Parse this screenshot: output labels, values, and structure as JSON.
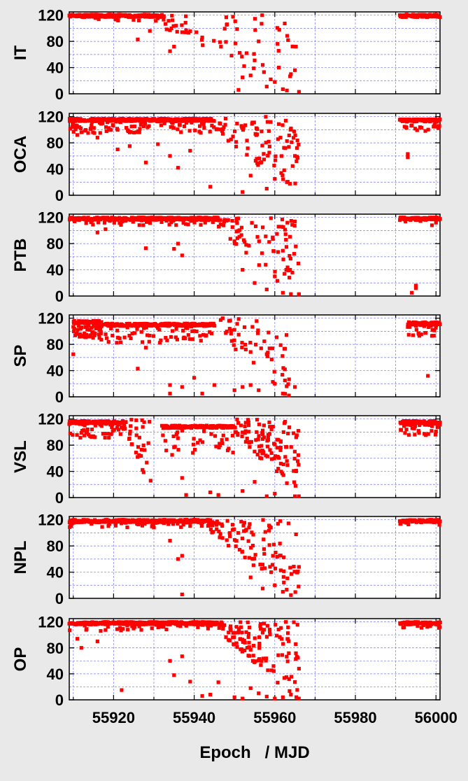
{
  "chart_data": [
    {
      "type": "scatter",
      "ylabel": "IT",
      "yticks": [
        0,
        40,
        80,
        120
      ],
      "ylim": [
        0,
        125
      ],
      "xlim": [
        55909,
        56001
      ],
      "color": "#ff0000",
      "segments": [
        {
          "x0": 55909,
          "x1": 55932,
          "x_end": 55966,
          "base": 119,
          "spread": 4,
          "prob": 0.08,
          "n_sparse": 55
        },
        {
          "x0": 55991,
          "x1": 56001,
          "x_end": 56001,
          "base": 119,
          "spread": 2,
          "prob": 0.0,
          "n_sparse": 0
        }
      ],
      "points": [
        [
          55926,
          83
        ],
        [
          55929,
          96
        ],
        [
          55934,
          65
        ],
        [
          55935,
          72
        ],
        [
          55937,
          94
        ],
        [
          55938,
          97
        ],
        [
          55942,
          86
        ],
        [
          55951,
          6
        ],
        [
          55952,
          25
        ],
        [
          55953,
          62
        ],
        [
          55954,
          28
        ],
        [
          55955,
          51
        ],
        [
          55956,
          80
        ],
        [
          55957,
          44
        ],
        [
          55958,
          11
        ],
        [
          55959,
          22
        ],
        [
          55960,
          18
        ],
        [
          55961,
          40
        ],
        [
          55962,
          7
        ],
        [
          55963,
          5
        ],
        [
          55964,
          30
        ],
        [
          55965,
          36
        ],
        [
          55966,
          3
        ]
      ]
    },
    {
      "type": "scatter",
      "ylabel": "OCA",
      "yticks": [
        0,
        40,
        80,
        120
      ],
      "ylim": [
        0,
        125
      ],
      "xlim": [
        55909,
        56001
      ],
      "color": "#ff0000",
      "segments": [
        {
          "x0": 55909,
          "x1": 55945,
          "x_end": 55966,
          "base": 115,
          "spread": 10,
          "prob": 0.3,
          "n_sparse": 90
        },
        {
          "x0": 55991,
          "x1": 56001,
          "x_end": 56001,
          "base": 114,
          "spread": 8,
          "prob": 0.2,
          "n_sparse": 0
        }
      ],
      "points": [
        [
          55911,
          92
        ],
        [
          55916,
          88
        ],
        [
          55921,
          70
        ],
        [
          55924,
          75
        ],
        [
          55928,
          50
        ],
        [
          55931,
          78
        ],
        [
          55934,
          60
        ],
        [
          55936,
          42
        ],
        [
          55939,
          68
        ],
        [
          55944,
          13
        ],
        [
          55952,
          5
        ],
        [
          55954,
          30
        ],
        [
          55958,
          10
        ],
        [
          55960,
          25
        ],
        [
          55963,
          20
        ],
        [
          55965,
          60
        ],
        [
          55993,
          58
        ],
        [
          55993,
          63
        ]
      ]
    },
    {
      "type": "scatter",
      "ylabel": "PTB",
      "yticks": [
        0,
        40,
        80,
        120
      ],
      "ylim": [
        0,
        125
      ],
      "xlim": [
        55909,
        56001
      ],
      "color": "#ff0000",
      "segments": [
        {
          "x0": 55909,
          "x1": 55946,
          "x_end": 55966,
          "base": 118,
          "spread": 5,
          "prob": 0.15,
          "n_sparse": 80
        },
        {
          "x0": 55991,
          "x1": 56001,
          "x_end": 56001,
          "base": 118,
          "spread": 3,
          "prob": 0.05,
          "n_sparse": 0
        }
      ],
      "points": [
        [
          55916,
          97
        ],
        [
          55918,
          102
        ],
        [
          55928,
          73
        ],
        [
          55935,
          72
        ],
        [
          55936,
          80
        ],
        [
          55937,
          62
        ],
        [
          55952,
          40
        ],
        [
          55955,
          20
        ],
        [
          55958,
          10
        ],
        [
          55960,
          30
        ],
        [
          55962,
          5
        ],
        [
          55964,
          3
        ],
        [
          55966,
          2
        ],
        [
          55994,
          5
        ],
        [
          55995,
          12
        ],
        [
          55995,
          16
        ],
        [
          55999,
          108
        ],
        [
          56000,
          112
        ]
      ]
    },
    {
      "type": "scatter",
      "ylabel": "SP",
      "yticks": [
        0,
        40,
        80,
        120
      ],
      "ylim": [
        0,
        125
      ],
      "xlim": [
        55909,
        56001
      ],
      "color": "#ff0000",
      "segments": [
        {
          "x0": 55910,
          "x1": 55917,
          "x_end": 55917,
          "base": 114,
          "spread": 12,
          "prob": 0.8,
          "n_sparse": 0
        },
        {
          "x0": 55916,
          "x1": 55945,
          "x_end": 55964,
          "base": 110,
          "spread": 14,
          "prob": 0.3,
          "n_sparse": 55
        },
        {
          "x0": 55993,
          "x1": 56001,
          "x_end": 56001,
          "base": 112,
          "spread": 10,
          "prob": 0.3,
          "n_sparse": 0
        }
      ],
      "points": [
        [
          55910,
          65
        ],
        [
          55926,
          43
        ],
        [
          55928,
          75
        ],
        [
          55934,
          18
        ],
        [
          55934,
          5
        ],
        [
          55937,
          15
        ],
        [
          55940,
          29
        ],
        [
          55942,
          5
        ],
        [
          55945,
          18
        ],
        [
          55950,
          10
        ],
        [
          55952,
          15
        ],
        [
          55954,
          18
        ],
        [
          55956,
          10
        ],
        [
          55958,
          65
        ],
        [
          55960,
          20
        ],
        [
          55962,
          5
        ],
        [
          55965,
          15
        ],
        [
          55999,
          93
        ],
        [
          55998,
          32
        ]
      ]
    },
    {
      "type": "scatter",
      "ylabel": "VSL",
      "yticks": [
        0,
        40,
        80,
        120
      ],
      "ylim": [
        0,
        125
      ],
      "xlim": [
        55909,
        56001
      ],
      "color": "#ff0000",
      "segments": [
        {
          "x0": 55909,
          "x1": 55923,
          "x_end": 55930,
          "base": 115,
          "spread": 12,
          "prob": 0.5,
          "n_sparse": 30
        },
        {
          "x0": 55932,
          "x1": 55950,
          "x_end": 55966,
          "base": 108,
          "spread": 22,
          "prob": 0.25,
          "n_sparse": 110
        },
        {
          "x0": 55991,
          "x1": 56001,
          "x_end": 56001,
          "base": 115,
          "spread": 10,
          "prob": 0.5,
          "n_sparse": 0
        }
      ],
      "points": [
        [
          55937,
          30
        ],
        [
          55938,
          4
        ],
        [
          55944,
          8
        ],
        [
          55946,
          4
        ],
        [
          55952,
          10
        ],
        [
          55955,
          24
        ],
        [
          55958,
          2
        ],
        [
          55960,
          6
        ],
        [
          55963,
          22
        ],
        [
          55965,
          2
        ]
      ]
    },
    {
      "type": "scatter",
      "ylabel": "NPL",
      "yticks": [
        0,
        40,
        80,
        120
      ],
      "ylim": [
        0,
        125
      ],
      "xlim": [
        55909,
        56001
      ],
      "color": "#ff0000",
      "segments": [
        {
          "x0": 55909,
          "x1": 55944,
          "x_end": 55966,
          "base": 118,
          "spread": 5,
          "prob": 0.15,
          "n_sparse": 100
        },
        {
          "x0": 55991,
          "x1": 56001,
          "x_end": 56001,
          "base": 118,
          "spread": 3,
          "prob": 0.05,
          "n_sparse": 0
        }
      ],
      "points": [
        [
          55934,
          88
        ],
        [
          55936,
          60
        ],
        [
          55937,
          65
        ],
        [
          55937,
          6
        ],
        [
          55954,
          32
        ],
        [
          55957,
          15
        ],
        [
          55960,
          20
        ],
        [
          55962,
          10
        ],
        [
          55964,
          5
        ],
        [
          55966,
          48
        ]
      ]
    },
    {
      "type": "scatter",
      "ylabel": "OP",
      "yticks": [
        0,
        40,
        80,
        120
      ],
      "ylim": [
        0,
        125
      ],
      "xlim": [
        55909,
        56001
      ],
      "color": "#ff0000",
      "xlabel": "Epoch   / MJD",
      "xticks": [
        55920,
        55940,
        55960,
        55980,
        56000
      ],
      "segments": [
        {
          "x0": 55909,
          "x1": 55947,
          "x_end": 55966,
          "base": 118,
          "spread": 6,
          "prob": 0.18,
          "n_sparse": 115
        },
        {
          "x0": 55991,
          "x1": 56001,
          "x_end": 56001,
          "base": 118,
          "spread": 4,
          "prob": 0.1,
          "n_sparse": 0
        }
      ],
      "points": [
        [
          55911,
          94
        ],
        [
          55912,
          80
        ],
        [
          55916,
          90
        ],
        [
          55922,
          15
        ],
        [
          55934,
          60
        ],
        [
          55935,
          38
        ],
        [
          55937,
          67
        ],
        [
          55939,
          28
        ],
        [
          55942,
          6
        ],
        [
          55944,
          8
        ],
        [
          55946,
          27
        ],
        [
          55950,
          4
        ],
        [
          55952,
          2
        ],
        [
          55954,
          18
        ],
        [
          55956,
          10
        ],
        [
          55958,
          5
        ],
        [
          55960,
          2
        ],
        [
          55962,
          4
        ],
        [
          55964,
          8
        ],
        [
          55966,
          48
        ]
      ]
    }
  ]
}
